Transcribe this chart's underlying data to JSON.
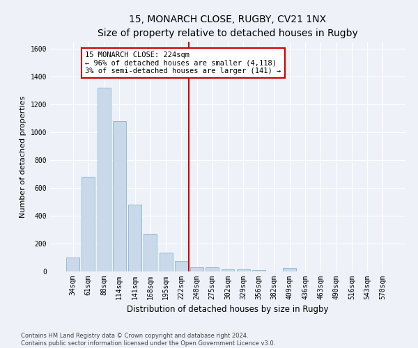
{
  "title": "15, MONARCH CLOSE, RUGBY, CV21 1NX",
  "subtitle": "Size of property relative to detached houses in Rugby",
  "xlabel": "Distribution of detached houses by size in Rugby",
  "ylabel": "Number of detached properties",
  "categories": [
    "34sqm",
    "61sqm",
    "88sqm",
    "114sqm",
    "141sqm",
    "168sqm",
    "195sqm",
    "222sqm",
    "248sqm",
    "275sqm",
    "302sqm",
    "329sqm",
    "356sqm",
    "382sqm",
    "409sqm",
    "436sqm",
    "463sqm",
    "490sqm",
    "516sqm",
    "543sqm",
    "570sqm"
  ],
  "values": [
    100,
    680,
    1320,
    1080,
    480,
    270,
    135,
    75,
    30,
    30,
    15,
    15,
    12,
    0,
    25,
    0,
    0,
    0,
    0,
    0,
    0
  ],
  "bar_color": "#c9d9ea",
  "bar_edge_color": "#8ab4cf",
  "vline_x_index": 7.5,
  "vline_color": "#cc0000",
  "annotation_text": "15 MONARCH CLOSE: 224sqm\n← 96% of detached houses are smaller (4,118)\n3% of semi-detached houses are larger (141) →",
  "annotation_box_color": "#ffffff",
  "annotation_box_edge": "#cc0000",
  "ylim": [
    0,
    1650
  ],
  "yticks": [
    0,
    200,
    400,
    600,
    800,
    1000,
    1200,
    1400,
    1600
  ],
  "footer": "Contains HM Land Registry data © Crown copyright and database right 2024.\nContains public sector information licensed under the Open Government Licence v3.0.",
  "background_color": "#eef2f8",
  "grid_color": "#ffffff",
  "title_fontsize": 10,
  "subtitle_fontsize": 9,
  "xlabel_fontsize": 8.5,
  "ylabel_fontsize": 8,
  "tick_fontsize": 7,
  "annotation_fontsize": 7.5,
  "footer_fontsize": 6
}
